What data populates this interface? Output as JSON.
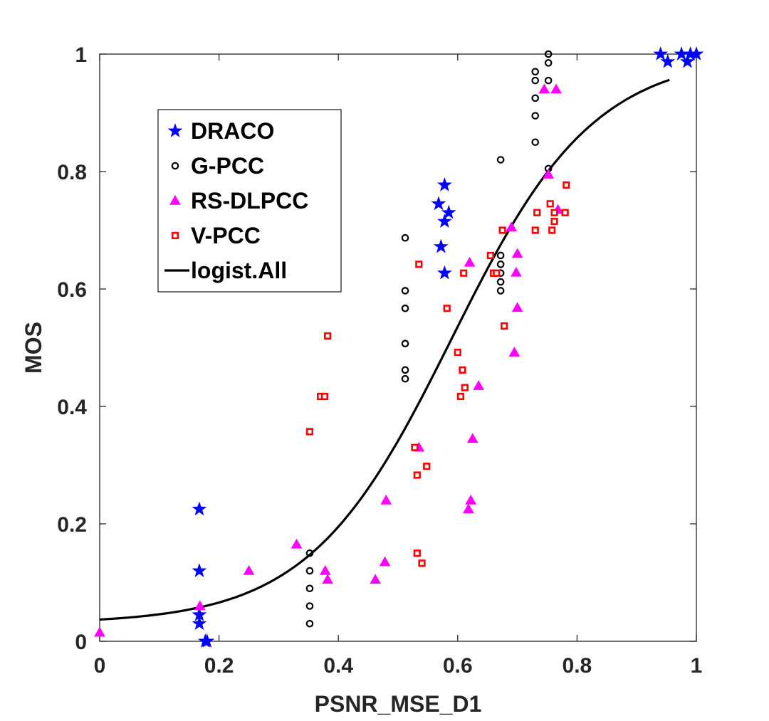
{
  "chart_data": {
    "type": "scatter",
    "title": "",
    "xlabel": "PSNR_MSE_D1",
    "ylabel": "MOS",
    "xlim": [
      0,
      1
    ],
    "ylim": [
      0,
      1
    ],
    "xticks": [
      0,
      0.2,
      0.4,
      0.6,
      0.8,
      1
    ],
    "yticks": [
      0,
      0.2,
      0.4,
      0.6,
      0.8,
      1
    ],
    "xtick_labels": [
      "0",
      "0.2",
      "0.4",
      "0.6",
      "0.8",
      "1"
    ],
    "ytick_labels": [
      "0",
      "0.2",
      "0.4",
      "0.6",
      "0.8",
      "1"
    ],
    "grid": false,
    "legend_position": "top-left",
    "series": [
      {
        "name": "DRACO",
        "marker": "star",
        "color": "#0000ff",
        "points": [
          [
            0.167,
            0.225
          ],
          [
            0.167,
            0.12
          ],
          [
            0.167,
            0.045
          ],
          [
            0.167,
            0.03
          ],
          [
            0.177,
            0.0
          ],
          [
            0.18,
            0.0
          ],
          [
            0.568,
            0.745
          ],
          [
            0.578,
            0.777
          ],
          [
            0.578,
            0.715
          ],
          [
            0.585,
            0.73
          ],
          [
            0.572,
            0.672
          ],
          [
            0.578,
            0.627
          ],
          [
            0.94,
            1.0
          ],
          [
            0.952,
            0.987
          ],
          [
            0.975,
            1.0
          ],
          [
            0.985,
            0.987
          ],
          [
            0.99,
            1.0
          ],
          [
            1.0,
            1.0
          ]
        ]
      },
      {
        "name": "G-PCC",
        "marker": "circle",
        "color": "#000000",
        "points": [
          [
            0.352,
            0.15
          ],
          [
            0.352,
            0.12
          ],
          [
            0.352,
            0.09
          ],
          [
            0.352,
            0.06
          ],
          [
            0.352,
            0.03
          ],
          [
            0.512,
            0.687
          ],
          [
            0.512,
            0.597
          ],
          [
            0.512,
            0.567
          ],
          [
            0.512,
            0.507
          ],
          [
            0.512,
            0.462
          ],
          [
            0.512,
            0.447
          ],
          [
            0.672,
            0.82
          ],
          [
            0.672,
            0.657
          ],
          [
            0.672,
            0.642
          ],
          [
            0.672,
            0.627
          ],
          [
            0.672,
            0.612
          ],
          [
            0.672,
            0.597
          ],
          [
            0.73,
            0.97
          ],
          [
            0.73,
            0.955
          ],
          [
            0.73,
            0.925
          ],
          [
            0.73,
            0.895
          ],
          [
            0.73,
            0.85
          ],
          [
            0.752,
            1.0
          ],
          [
            0.752,
            0.985
          ],
          [
            0.752,
            0.955
          ],
          [
            0.752,
            0.805
          ]
        ]
      },
      {
        "name": "RS-DLPCC",
        "marker": "triangle",
        "color": "#ff00ff",
        "points": [
          [
            0.0,
            0.015
          ],
          [
            0.168,
            0.06
          ],
          [
            0.25,
            0.12
          ],
          [
            0.33,
            0.165
          ],
          [
            0.378,
            0.12
          ],
          [
            0.382,
            0.105
          ],
          [
            0.462,
            0.105
          ],
          [
            0.478,
            0.135
          ],
          [
            0.48,
            0.24
          ],
          [
            0.535,
            0.33
          ],
          [
            0.618,
            0.225
          ],
          [
            0.622,
            0.24
          ],
          [
            0.62,
            0.645
          ],
          [
            0.625,
            0.345
          ],
          [
            0.635,
            0.435
          ],
          [
            0.69,
            0.705
          ],
          [
            0.695,
            0.492
          ],
          [
            0.698,
            0.628
          ],
          [
            0.7,
            0.66
          ],
          [
            0.7,
            0.568
          ],
          [
            0.745,
            0.94
          ],
          [
            0.752,
            0.795
          ],
          [
            0.765,
            0.94
          ],
          [
            0.768,
            0.735
          ]
        ]
      },
      {
        "name": "V-PCC",
        "marker": "square",
        "color": "#ff0000",
        "points": [
          [
            0.352,
            0.357
          ],
          [
            0.37,
            0.417
          ],
          [
            0.377,
            0.417
          ],
          [
            0.382,
            0.52
          ],
          [
            0.528,
            0.33
          ],
          [
            0.532,
            0.15
          ],
          [
            0.532,
            0.283
          ],
          [
            0.535,
            0.642
          ],
          [
            0.54,
            0.133
          ],
          [
            0.548,
            0.298
          ],
          [
            0.582,
            0.567
          ],
          [
            0.6,
            0.492
          ],
          [
            0.608,
            0.462
          ],
          [
            0.605,
            0.417
          ],
          [
            0.612,
            0.432
          ],
          [
            0.61,
            0.627
          ],
          [
            0.655,
            0.657
          ],
          [
            0.66,
            0.627
          ],
          [
            0.665,
            0.627
          ],
          [
            0.675,
            0.7
          ],
          [
            0.678,
            0.537
          ],
          [
            0.73,
            0.7
          ],
          [
            0.733,
            0.73
          ],
          [
            0.755,
            0.745
          ],
          [
            0.758,
            0.7
          ],
          [
            0.762,
            0.715
          ],
          [
            0.762,
            0.73
          ],
          [
            0.78,
            0.73
          ],
          [
            0.782,
            0.777
          ]
        ]
      },
      {
        "name": "logist.All",
        "marker": "line",
        "color": "#000000",
        "curve": {
          "form": "logistic",
          "lower": 0.03,
          "upper": 1.0,
          "midpoint": 0.5897,
          "slope": 8.35,
          "x_range": [
            0,
            0.955
          ]
        }
      }
    ]
  }
}
